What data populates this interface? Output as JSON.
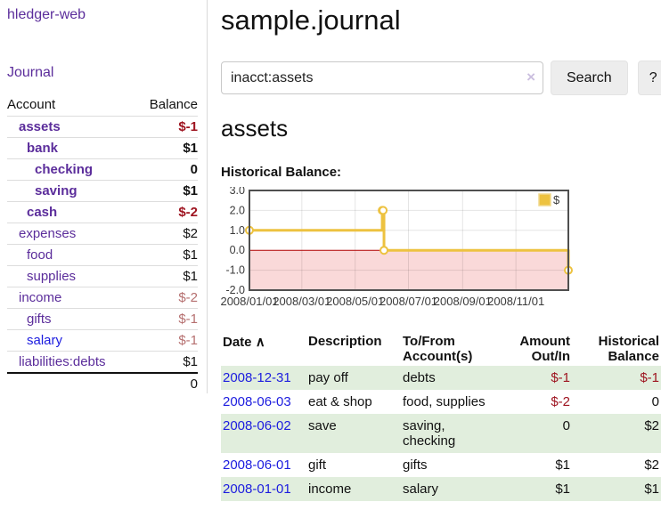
{
  "app": {
    "title": "hledger-web",
    "journal_link": "Journal"
  },
  "colors": {
    "link_purple": "#5b2d9b",
    "link_blue": "#1c1cdf",
    "negative_strong": "#9e1420",
    "negative_muted": "#b56f6f",
    "row_green": "#e1eedd",
    "chart_line": "#edc240",
    "chart_negative_region": "#fad9d9",
    "chart_zero_line": "#b00000"
  },
  "sidebar": {
    "header": {
      "account": "Account",
      "balance": "Balance"
    },
    "accounts": [
      {
        "name": "assets",
        "balance": "$-1",
        "level": 1,
        "bold": true,
        "negative": "strong"
      },
      {
        "name": "bank",
        "balance": "$1",
        "level": 2,
        "bold": true,
        "negative": null
      },
      {
        "name": "checking",
        "balance": "0",
        "level": 3,
        "bold": true,
        "negative": null
      },
      {
        "name": "saving",
        "balance": "$1",
        "level": 3,
        "bold": true,
        "negative": null
      },
      {
        "name": "cash",
        "balance": "$-2",
        "level": 2,
        "bold": true,
        "negative": "strong"
      },
      {
        "name": "expenses",
        "balance": "$2",
        "level": 1,
        "bold": false,
        "negative": null
      },
      {
        "name": "food",
        "balance": "$1",
        "level": 2,
        "bold": false,
        "negative": null
      },
      {
        "name": "supplies",
        "balance": "$1",
        "level": 2,
        "bold": false,
        "negative": null
      },
      {
        "name": "income",
        "balance": "$-2",
        "level": 1,
        "bold": false,
        "negative": "muted"
      },
      {
        "name": "gifts",
        "balance": "$-1",
        "level": 2,
        "bold": false,
        "negative": "muted"
      },
      {
        "name": "salary",
        "balance": "$-1",
        "level": 2,
        "bold": false,
        "negative": "muted",
        "link_color": "blue"
      },
      {
        "name": "liabilities:debts",
        "balance": "$1",
        "level": 1,
        "bold": false,
        "negative": null
      }
    ],
    "total": "0"
  },
  "main": {
    "title": "sample.journal"
  },
  "search": {
    "value": "inacct:assets",
    "clear_icon": "×",
    "button_label": "Search",
    "help_label": "?"
  },
  "account": {
    "heading": "assets",
    "chart_title": "Historical Balance:"
  },
  "chart_data": {
    "type": "line",
    "title": "Historical Balance",
    "step": true,
    "legend": "$",
    "legend_position": "top-right",
    "grid": true,
    "x_range": [
      "2008-01-01",
      "2008-12-31"
    ],
    "ylim": [
      -2,
      3
    ],
    "y_ticks": [
      3.0,
      2.0,
      1.0,
      0.0,
      -1.0,
      -2.0
    ],
    "x_tick_labels": [
      "2008/01/01",
      "2008/03/01",
      "2008/05/01",
      "2008/07/01",
      "2008/09/01",
      "2008/11/01"
    ],
    "series": [
      {
        "name": "$",
        "color": "#edc240",
        "points": [
          {
            "date": "2008-01-01",
            "value": 1
          },
          {
            "date": "2008-06-01",
            "value": 2
          },
          {
            "date": "2008-06-02",
            "value": 2
          },
          {
            "date": "2008-06-03",
            "value": 0
          },
          {
            "date": "2008-12-31",
            "value": -1
          }
        ]
      }
    ]
  },
  "register": {
    "headers": {
      "date": "Date",
      "sort_icon": "∧",
      "description": "Description",
      "accounts": "To/From Account(s)",
      "amount": "Amount Out/In",
      "balance": "Historical Balance"
    },
    "rows": [
      {
        "date": "2008-12-31",
        "description": "pay off",
        "accounts": "debts",
        "amount": "$-1",
        "balance": "$-1"
      },
      {
        "date": "2008-06-03",
        "description": "eat & shop",
        "accounts": "food, supplies",
        "amount": "$-2",
        "balance": "0"
      },
      {
        "date": "2008-06-02",
        "description": "save",
        "accounts": "saving, checking",
        "amount": "0",
        "balance": "$2"
      },
      {
        "date": "2008-06-01",
        "description": "gift",
        "accounts": "gifts",
        "amount": "$1",
        "balance": "$2"
      },
      {
        "date": "2008-01-01",
        "description": "income",
        "accounts": "salary",
        "amount": "$1",
        "balance": "$1"
      }
    ]
  }
}
